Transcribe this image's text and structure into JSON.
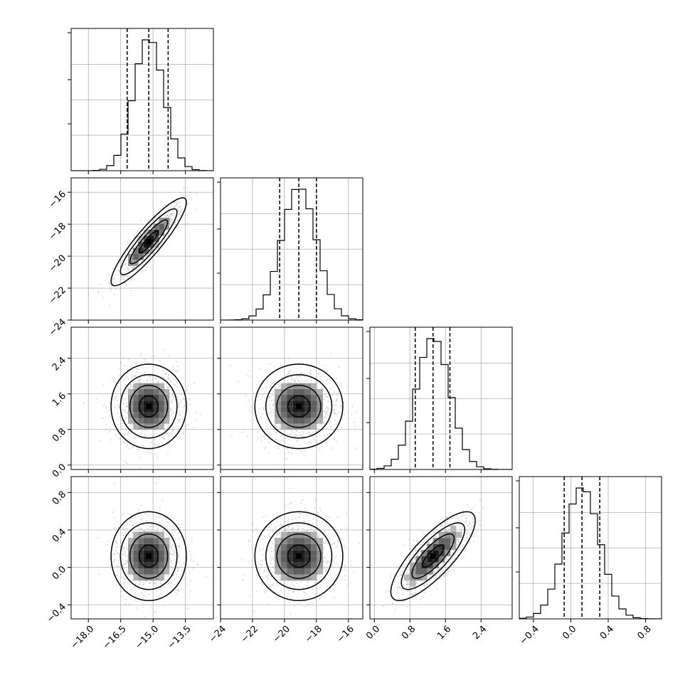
{
  "chart_data": {
    "type": "corner",
    "title": "",
    "grid": true,
    "colors": {
      "line": "#000000",
      "grid": "#b0b0b0",
      "scatter": "#9a9a9a",
      "background": "#ffffff"
    },
    "parameters": [
      {
        "range": [
          -18.8,
          -12.2
        ],
        "ticks": [
          -18.0,
          -16.5,
          -15.0,
          -13.5
        ],
        "tick_labels": [
          "−18.0",
          "−16.5",
          "−15.0",
          "−13.5"
        ],
        "quantiles": [
          -16.2,
          -15.2,
          -14.3
        ],
        "mean": -15.2,
        "sd": 0.7
      },
      {
        "range": [
          -24.0,
          -15.1
        ],
        "ticks": [
          -24,
          -22,
          -20,
          -18,
          -16
        ],
        "tick_labels": [
          "−24",
          "−22",
          "−20",
          "−18",
          "−16"
        ],
        "quantiles": [
          -20.3,
          -19.1,
          -18.0
        ],
        "mean": -19.1,
        "sd": 1.1
      },
      {
        "range": [
          -0.1,
          3.1
        ],
        "ticks": [
          0.0,
          0.8,
          1.6,
          2.4
        ],
        "tick_labels": [
          "0.0",
          "0.8",
          "1.6",
          "2.4"
        ],
        "quantiles": [
          0.92,
          1.32,
          1.7
        ],
        "mean": 1.32,
        "sd": 0.38
      },
      {
        "range": [
          -0.55,
          0.97
        ],
        "ticks": [
          -0.4,
          0.0,
          0.4,
          0.8
        ],
        "tick_labels": [
          "−0.4",
          "0.0",
          "0.4",
          "0.8"
        ],
        "quantiles": [
          -0.07,
          0.12,
          0.31
        ],
        "mean": 0.12,
        "sd": 0.19
      }
    ],
    "correlations": [
      [
        1.0,
        0.9,
        0.0,
        0.0
      ],
      [
        0.9,
        1.0,
        0.0,
        0.0
      ],
      [
        0.0,
        0.0,
        1.0,
        0.8
      ],
      [
        0.0,
        0.0,
        0.8,
        1.0
      ]
    ],
    "hist_bins": 20,
    "contour_levels_sigma": [
      0.5,
      1.0,
      1.5,
      2.0
    ]
  }
}
